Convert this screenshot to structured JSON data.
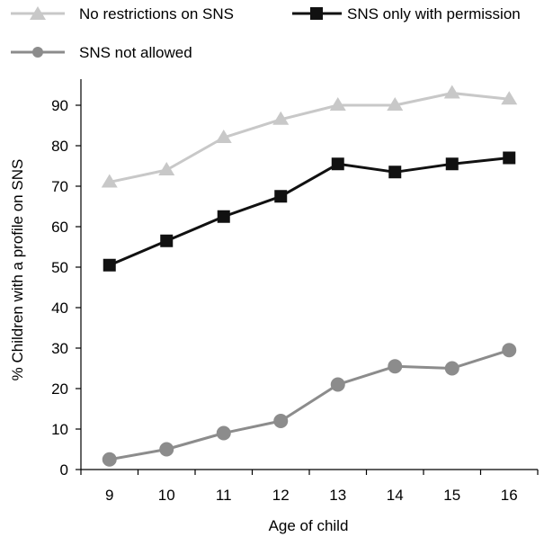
{
  "chart_data": {
    "type": "line",
    "title": "",
    "xlabel": "Age of child",
    "ylabel": "% Children with a profile on SNS",
    "categories": [
      "9",
      "10",
      "11",
      "12",
      "13",
      "14",
      "15",
      "16"
    ],
    "ylim": [
      0,
      95
    ],
    "yticks": [
      0,
      10,
      20,
      30,
      40,
      50,
      60,
      70,
      80,
      90
    ],
    "grid": false,
    "legend_position": "top",
    "series": [
      {
        "name": "No restrictions on SNS",
        "marker": "triangle",
        "color": "#c8c8c8",
        "values": [
          71,
          74,
          82,
          86.5,
          90,
          90,
          93,
          91.5
        ]
      },
      {
        "name": "SNS only with permission",
        "marker": "square",
        "color": "#111111",
        "values": [
          50.5,
          56.5,
          62.5,
          67.5,
          75.5,
          73.5,
          75.5,
          77
        ]
      },
      {
        "name": "SNS not allowed",
        "marker": "circle",
        "color": "#8c8c8c",
        "values": [
          2.5,
          5,
          9,
          12,
          21,
          25.5,
          25,
          29.5
        ]
      }
    ]
  }
}
